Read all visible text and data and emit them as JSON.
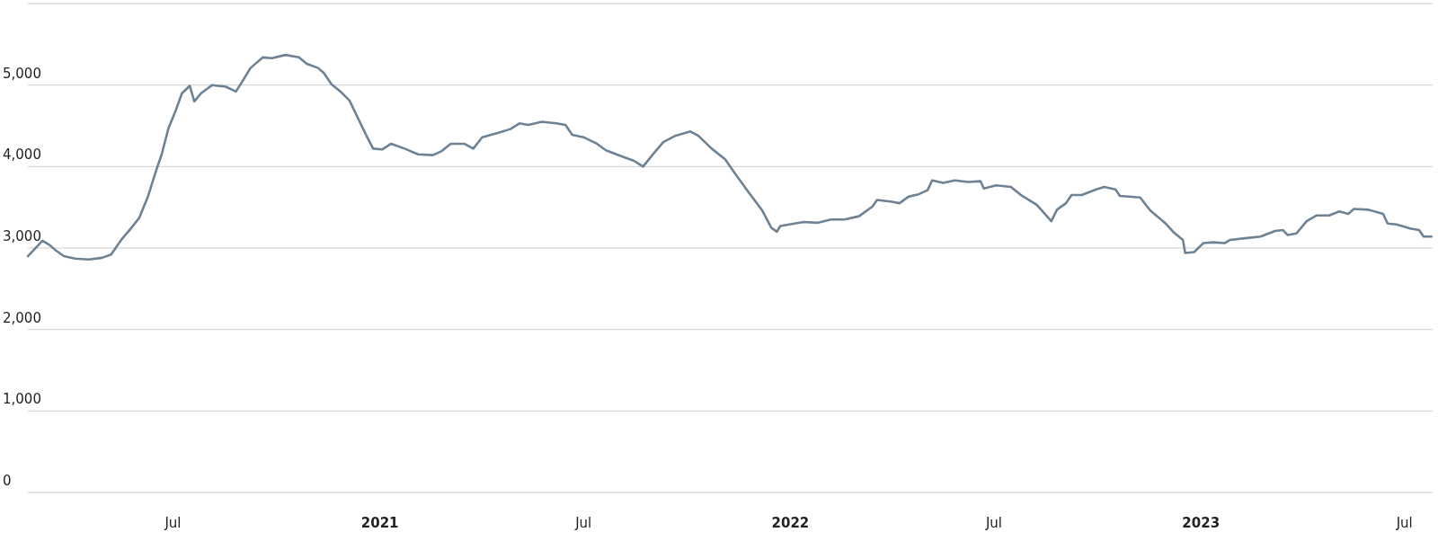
{
  "chart_data": {
    "type": "line",
    "xlim": [
      "2020-02-23",
      "2023-07-26"
    ],
    "ylim": [
      0,
      6000
    ],
    "xticks": [
      {
        "value": "2020-07-01",
        "label": "Jul"
      },
      {
        "value": "2021-01-01",
        "label": "2021"
      },
      {
        "value": "2021-07-01",
        "label": "Jul"
      },
      {
        "value": "2022-01-01",
        "label": "2022"
      },
      {
        "value": "2022-07-01",
        "label": "Jul"
      },
      {
        "value": "2023-01-01",
        "label": "2023"
      },
      {
        "value": "2023-07-01",
        "label": "Jul"
      }
    ],
    "yticks": [
      {
        "value": 0,
        "label": "0"
      },
      {
        "value": 1000,
        "label": "1,000"
      },
      {
        "value": 2000,
        "label": "2,000"
      },
      {
        "value": 3000,
        "label": "3,000"
      },
      {
        "value": 4000,
        "label": "4,000"
      },
      {
        "value": 5000,
        "label": "5,000"
      },
      {
        "value": 6000,
        "label": null
      }
    ],
    "grid": "y",
    "marker": "none",
    "line_style": "solid",
    "x": [
      "2020-02-23",
      "2020-03-07",
      "2020-03-13",
      "2020-03-19",
      "2020-03-26",
      "2020-04-05",
      "2020-04-17",
      "2020-04-29",
      "2020-05-07",
      "2020-05-16",
      "2020-05-24",
      "2020-06-01",
      "2020-06-09",
      "2020-06-16",
      "2020-06-21",
      "2020-06-27",
      "2020-07-03",
      "2020-07-09",
      "2020-07-16",
      "2020-07-20",
      "2020-07-26",
      "2020-08-05",
      "2020-08-17",
      "2020-08-26",
      "2020-08-31",
      "2020-09-08",
      "2020-09-19",
      "2020-09-27",
      "2020-10-09",
      "2020-10-21",
      "2020-10-28",
      "2020-11-07",
      "2020-11-12",
      "2020-11-19",
      "2020-11-27",
      "2020-12-05",
      "2020-12-13",
      "2020-12-20",
      "2020-12-26",
      "2021-01-03",
      "2021-01-11",
      "2021-01-23",
      "2021-02-04",
      "2021-02-17",
      "2021-02-25",
      "2021-03-05",
      "2021-03-17",
      "2021-03-25",
      "2021-04-02",
      "2021-04-15",
      "2021-04-27",
      "2021-05-05",
      "2021-05-13",
      "2021-05-25",
      "2021-06-07",
      "2021-06-15",
      "2021-06-21",
      "2021-07-01",
      "2021-07-13",
      "2021-07-21",
      "2021-08-03",
      "2021-08-15",
      "2021-08-23",
      "2021-09-02",
      "2021-09-10",
      "2021-09-21",
      "2021-10-04",
      "2021-10-11",
      "2021-10-23",
      "2021-11-04",
      "2021-11-13",
      "2021-11-25",
      "2021-12-07",
      "2021-12-15",
      "2021-12-20",
      "2021-12-23",
      "2021-12-31",
      "2022-01-13",
      "2022-01-25",
      "2022-02-06",
      "2022-02-18",
      "2022-03-03",
      "2022-03-15",
      "2022-03-19",
      "2022-03-31",
      "2022-04-08",
      "2022-04-16",
      "2022-04-25",
      "2022-05-03",
      "2022-05-07",
      "2022-05-17",
      "2022-05-27",
      "2022-06-08",
      "2022-06-19",
      "2022-06-22",
      "2022-07-03",
      "2022-07-16",
      "2022-07-25",
      "2022-08-08",
      "2022-08-21",
      "2022-08-26",
      "2022-09-03",
      "2022-09-08",
      "2022-09-17",
      "2022-09-30",
      "2022-10-07",
      "2022-10-17",
      "2022-10-21",
      "2022-11-08",
      "2022-11-17",
      "2022-11-30",
      "2022-12-08",
      "2022-12-16",
      "2022-12-18",
      "2022-12-26",
      "2023-01-03",
      "2023-01-12",
      "2023-01-22",
      "2023-01-27",
      "2023-02-09",
      "2023-02-23",
      "2023-03-08",
      "2023-03-15",
      "2023-03-19",
      "2023-03-27",
      "2023-04-05",
      "2023-04-14",
      "2023-04-25",
      "2023-05-04",
      "2023-05-12",
      "2023-05-17",
      "2023-05-30",
      "2023-06-12",
      "2023-06-16",
      "2023-06-24",
      "2023-07-06",
      "2023-07-14",
      "2023-07-18",
      "2023-07-25"
    ],
    "series": [
      {
        "color": "#6e8294",
        "values": [
          2900,
          3090,
          3040,
          2970,
          2900,
          2870,
          2860,
          2880,
          2920,
          3100,
          3230,
          3370,
          3640,
          3950,
          4150,
          4470,
          4670,
          4900,
          4990,
          4800,
          4900,
          5000,
          4980,
          4920,
          5030,
          5210,
          5340,
          5330,
          5370,
          5340,
          5260,
          5210,
          5150,
          5010,
          4920,
          4810,
          4580,
          4380,
          4220,
          4210,
          4280,
          4220,
          4150,
          4140,
          4190,
          4280,
          4280,
          4220,
          4360,
          4410,
          4460,
          4530,
          4510,
          4550,
          4530,
          4510,
          4390,
          4360,
          4280,
          4200,
          4130,
          4070,
          4000,
          4170,
          4300,
          4380,
          4430,
          4380,
          4220,
          4090,
          3910,
          3680,
          3460,
          3250,
          3200,
          3270,
          3290,
          3320,
          3310,
          3350,
          3350,
          3390,
          3510,
          3590,
          3570,
          3550,
          3630,
          3660,
          3710,
          3830,
          3800,
          3830,
          3810,
          3820,
          3730,
          3770,
          3750,
          3650,
          3530,
          3330,
          3470,
          3550,
          3650,
          3650,
          3720,
          3750,
          3720,
          3640,
          3620,
          3460,
          3310,
          3190,
          3100,
          2940,
          2950,
          3060,
          3070,
          3060,
          3100,
          3120,
          3140,
          3210,
          3220,
          3160,
          3180,
          3330,
          3400,
          3400,
          3450,
          3420,
          3480,
          3470,
          3420,
          3300,
          3290,
          3240,
          3220,
          3140,
          3140
        ]
      }
    ]
  }
}
